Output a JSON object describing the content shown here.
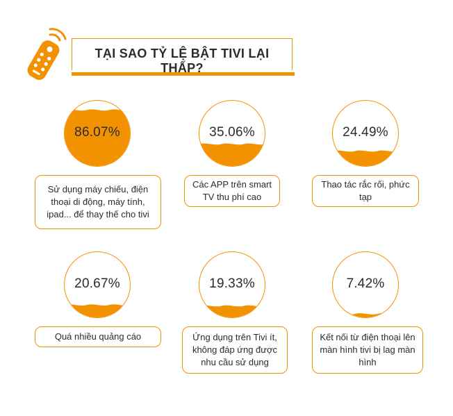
{
  "title": "TẠI SAO TỶ LỆ BẬT TIVI LẠI THẤP?",
  "accent_color": "#F39200",
  "icon": "tv-remote-icon",
  "chart_data": {
    "type": "bar",
    "title": "TẠI SAO TỶ LỆ BẬT TIVI LẠI THẤP?",
    "unit": "%",
    "categories": [
      "Sử dụng máy chiếu, điện thoại di động, máy tính, ipad... để thay thế cho tivi",
      "Các APP trên smart TV thu phí cao",
      "Thao tác rắc rối, phức tạp",
      "Quá nhiều quảng cáo",
      "Ứng dụng trên Tivi ít, không đáp ứng được nhu cầu sử dụng",
      "Kết nối từ điện thoại lên màn hình tivi bị lag màn hình"
    ],
    "values": [
      86.07,
      35.06,
      24.49,
      20.67,
      19.33,
      7.42
    ],
    "value_labels": [
      "86.07%",
      "35.06%",
      "24.49%",
      "20.67%",
      "19.33%",
      "7.42%"
    ]
  }
}
